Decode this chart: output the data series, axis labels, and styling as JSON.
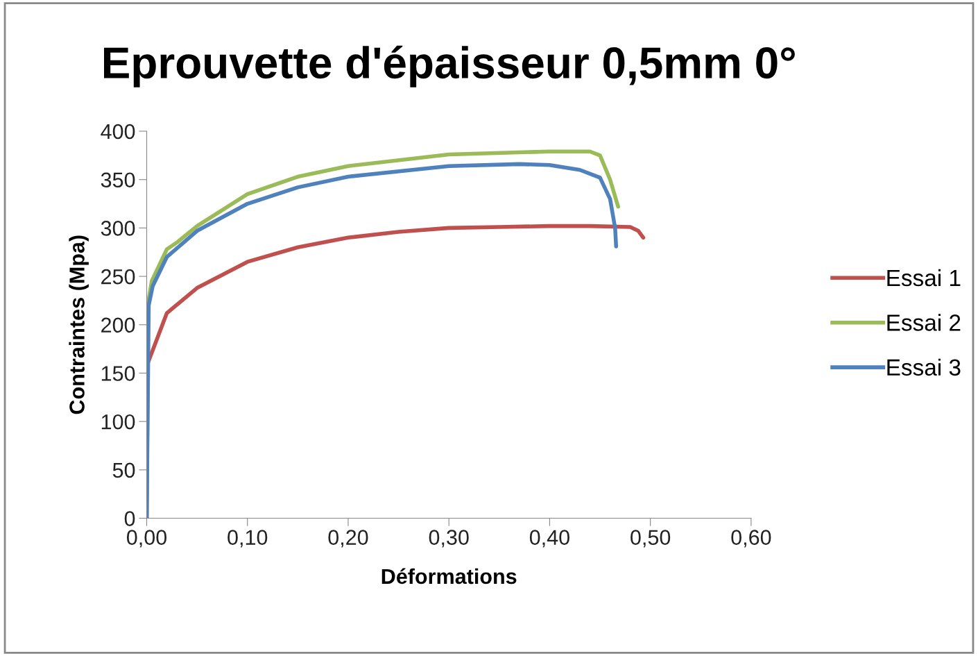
{
  "chart_data": {
    "type": "line",
    "title": "Eprouvette d'épaisseur 0,5mm 0°",
    "xlabel": "Déformations",
    "ylabel": "Contraintes (Mpa)",
    "xlim": [
      0,
      0.6
    ],
    "xticks": [
      {
        "value": 0,
        "label": "0,00"
      },
      {
        "value": 0.1,
        "label": "0,10"
      },
      {
        "value": 0.2,
        "label": "0,20"
      },
      {
        "value": 0.3,
        "label": "0,30"
      },
      {
        "value": 0.4,
        "label": "0,40"
      },
      {
        "value": 0.5,
        "label": "0,50"
      },
      {
        "value": 0.6,
        "label": "0,60"
      }
    ],
    "ylim": [
      0,
      400
    ],
    "yticks": [
      0,
      50,
      100,
      150,
      200,
      250,
      300,
      350,
      400
    ],
    "grid": false,
    "legend": "right",
    "marker": "none",
    "line_style": "solid",
    "series": [
      {
        "name": "Essai 1",
        "color": "#c0504d",
        "x": [
          0,
          0.001,
          0.02,
          0.05,
          0.1,
          0.15,
          0.2,
          0.25,
          0.3,
          0.35,
          0.4,
          0.44,
          0.48,
          0.488,
          0.493
        ],
        "values": [
          0,
          160,
          212,
          238,
          265,
          280,
          290,
          296,
          300,
          301,
          302,
          302,
          301,
          297,
          290
        ]
      },
      {
        "name": "Essai 2",
        "color": "#9bbb59",
        "x": [
          0,
          0.001,
          0.005,
          0.02,
          0.03,
          0.05,
          0.1,
          0.15,
          0.2,
          0.3,
          0.4,
          0.44,
          0.45,
          0.46,
          0.468
        ],
        "values": [
          0,
          220,
          245,
          278,
          285,
          302,
          335,
          353,
          364,
          376,
          379,
          379,
          375,
          350,
          322
        ]
      },
      {
        "name": "Essai 3",
        "color": "#4f81bd",
        "x": [
          0,
          0.002,
          0.006,
          0.02,
          0.05,
          0.1,
          0.15,
          0.2,
          0.3,
          0.37,
          0.4,
          0.43,
          0.45,
          0.46,
          0.465,
          0.466
        ],
        "values": [
          0,
          220,
          240,
          270,
          297,
          325,
          342,
          353,
          364,
          366,
          365,
          360,
          352,
          330,
          300,
          281
        ]
      }
    ]
  }
}
